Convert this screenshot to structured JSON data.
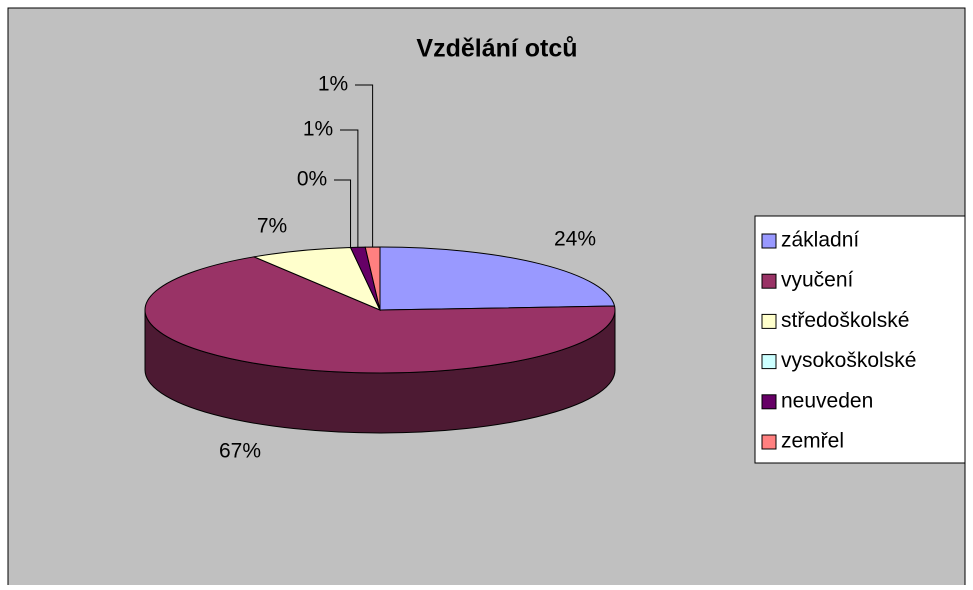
{
  "chart_data": {
    "type": "pie",
    "title": "Vzdělání otců",
    "categories": [
      "základní",
      "vyučení",
      "středoškolské",
      "vysokoškolské",
      "neuveden",
      "zemřel"
    ],
    "values": [
      24,
      67,
      7,
      0,
      1,
      1
    ],
    "value_labels": [
      "24%",
      "67%",
      "7%",
      "0%",
      "1%",
      "1%"
    ],
    "colors": [
      "#9999ff",
      "#993366",
      "#ffffcc",
      "#ccffff",
      "#660066",
      "#ff8080"
    ],
    "legend": "right"
  }
}
